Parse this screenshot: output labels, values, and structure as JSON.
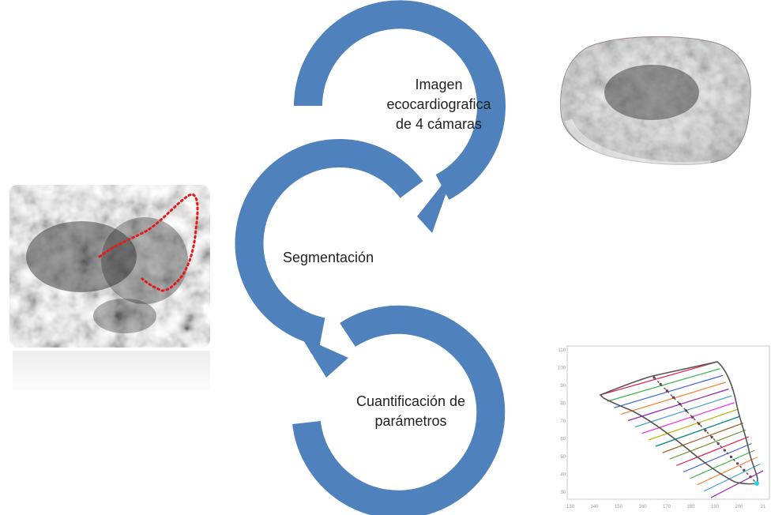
{
  "steps": [
    {
      "label": "Imagen ecocardiografica de 4 cámaras"
    },
    {
      "label": "Segmentación"
    },
    {
      "label": "Cuantificación de parámetros"
    }
  ],
  "colors": {
    "arrow": "#4F81BD",
    "contour": "#e31b1b",
    "text": "#222222"
  },
  "plot_axes": {
    "x_ticks": [
      "130",
      "140",
      "150",
      "160",
      "170",
      "180",
      "190",
      "200",
      "21"
    ],
    "y_ticks": [
      "110",
      "100",
      "90",
      "80",
      "70",
      "60",
      "50",
      "40",
      "30"
    ]
  }
}
